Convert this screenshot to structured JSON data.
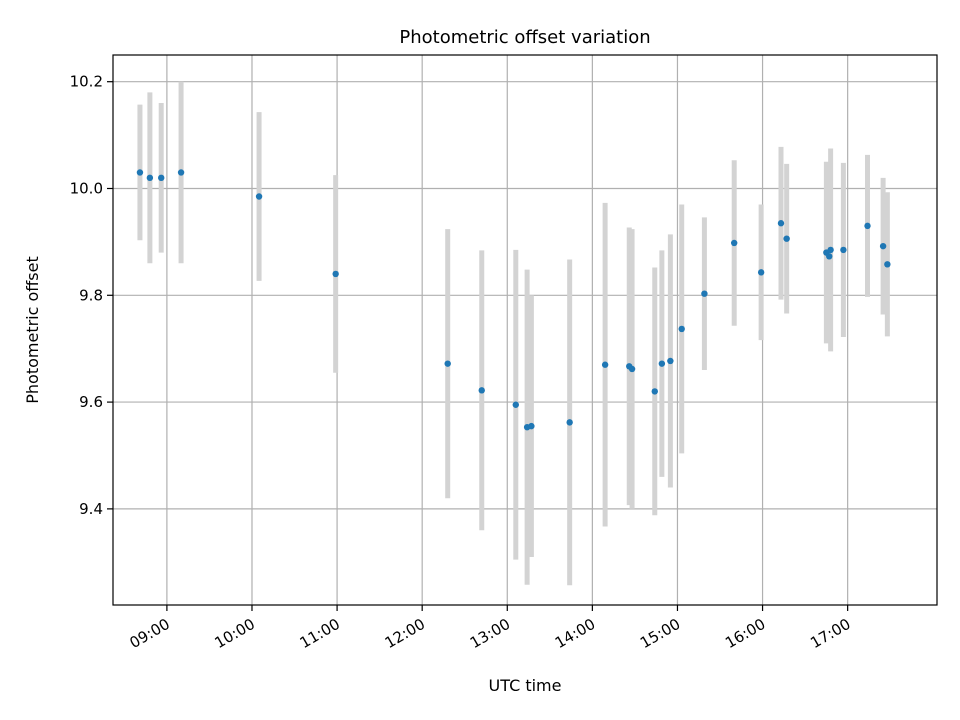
{
  "chart_data": {
    "type": "scatter",
    "title": "Photometric offset variation",
    "xlabel": "UTC time",
    "ylabel": "Photometric offset",
    "x_ticks": [
      "09:00",
      "10:00",
      "11:00",
      "12:00",
      "13:00",
      "14:00",
      "15:00",
      "16:00",
      "17:00"
    ],
    "y_ticks": [
      "9.4",
      "9.6",
      "9.8",
      "10.0",
      "10.2"
    ],
    "xlim": [
      "08:22",
      "18:03"
    ],
    "ylim": [
      9.22,
      10.25
    ],
    "grid": true,
    "point_color": "#1f77b4",
    "errorbar_color": "#d3d3d3",
    "points": [
      {
        "t": "08:41",
        "y": 10.03,
        "err": 0.127
      },
      {
        "t": "08:48",
        "y": 10.02,
        "err": 0.16
      },
      {
        "t": "08:56",
        "y": 10.02,
        "err": 0.14
      },
      {
        "t": "09:10",
        "y": 10.03,
        "err": 0.17
      },
      {
        "t": "10:05",
        "y": 9.985,
        "err": 0.158
      },
      {
        "t": "10:59",
        "y": 9.84,
        "err": 0.185
      },
      {
        "t": "12:18",
        "y": 9.672,
        "err": 0.252
      },
      {
        "t": "12:42",
        "y": 9.622,
        "err": 0.262
      },
      {
        "t": "13:06",
        "y": 9.595,
        "err": 0.29
      },
      {
        "t": "13:14",
        "y": 9.553,
        "err": 0.295
      },
      {
        "t": "13:17",
        "y": 9.555,
        "err": 0.245
      },
      {
        "t": "13:44",
        "y": 9.562,
        "err": 0.305
      },
      {
        "t": "14:09",
        "y": 9.67,
        "err": 0.303
      },
      {
        "t": "14:26",
        "y": 9.667,
        "err": 0.26
      },
      {
        "t": "14:28",
        "y": 9.662,
        "err": 0.262
      },
      {
        "t": "14:44",
        "y": 9.62,
        "err": 0.232
      },
      {
        "t": "14:49",
        "y": 9.672,
        "err": 0.212
      },
      {
        "t": "14:55",
        "y": 9.677,
        "err": 0.237
      },
      {
        "t": "15:03",
        "y": 9.737,
        "err": 0.233
      },
      {
        "t": "15:19",
        "y": 9.803,
        "err": 0.143
      },
      {
        "t": "15:40",
        "y": 9.898,
        "err": 0.155
      },
      {
        "t": "15:59",
        "y": 9.843,
        "err": 0.127
      },
      {
        "t": "16:13",
        "y": 9.935,
        "err": 0.143
      },
      {
        "t": "16:17",
        "y": 9.906,
        "err": 0.14
      },
      {
        "t": "16:45",
        "y": 9.88,
        "err": 0.17
      },
      {
        "t": "16:47",
        "y": 9.873,
        "err": 0.11
      },
      {
        "t": "16:48",
        "y": 9.885,
        "err": 0.19
      },
      {
        "t": "16:57",
        "y": 9.885,
        "err": 0.163
      },
      {
        "t": "17:14",
        "y": 9.93,
        "err": 0.133
      },
      {
        "t": "17:25",
        "y": 9.892,
        "err": 0.128
      },
      {
        "t": "17:28",
        "y": 9.858,
        "err": 0.135
      }
    ]
  }
}
